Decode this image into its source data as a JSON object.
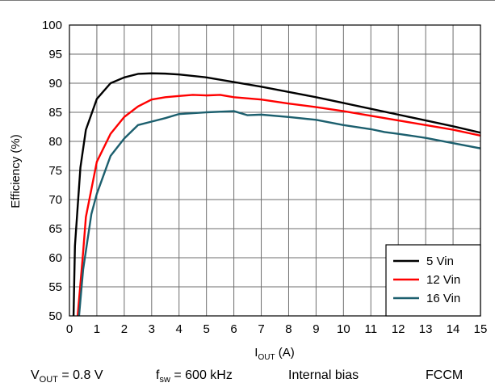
{
  "chart_data": {
    "type": "line",
    "xlabel": {
      "main": "I",
      "sub": "OUT",
      "unit": " (A)"
    },
    "ylabel": "Efficiency (%)",
    "xlim": [
      0,
      15
    ],
    "ylim": [
      50,
      100
    ],
    "x_ticks": [
      "0",
      "1",
      "2",
      "3",
      "4",
      "5",
      "6",
      "7",
      "8",
      "9",
      "10",
      "11",
      "12",
      "13",
      "14",
      "15"
    ],
    "y_ticks": [
      "50",
      "55",
      "60",
      "65",
      "70",
      "75",
      "80",
      "85",
      "90",
      "95",
      "100"
    ],
    "grid": true,
    "legend_position": "bottom-right",
    "series": [
      {
        "name": "5 Vin",
        "color": "#000000",
        "points": [
          [
            0.15,
            50
          ],
          [
            0.2,
            62
          ],
          [
            0.4,
            75.5
          ],
          [
            0.6,
            82
          ],
          [
            1.0,
            87.3
          ],
          [
            1.5,
            90
          ],
          [
            2.0,
            91
          ],
          [
            2.5,
            91.6
          ],
          [
            3.0,
            91.7
          ],
          [
            3.5,
            91.65
          ],
          [
            4.0,
            91.5
          ],
          [
            5.0,
            91
          ],
          [
            6.0,
            90.2
          ],
          [
            7.0,
            89.4
          ],
          [
            8.0,
            88.5
          ],
          [
            9.0,
            87.6
          ],
          [
            10.0,
            86.6
          ],
          [
            11.0,
            85.6
          ],
          [
            12.0,
            84.6
          ],
          [
            13.0,
            83.6
          ],
          [
            14.0,
            82.6
          ],
          [
            15.0,
            81.5
          ]
        ]
      },
      {
        "name": "12 Vin",
        "color": "#ff0000",
        "points": [
          [
            0.3,
            50
          ],
          [
            0.5,
            61
          ],
          [
            0.6,
            67
          ],
          [
            1.0,
            76.5
          ],
          [
            1.5,
            81.3
          ],
          [
            2.0,
            84.2
          ],
          [
            2.5,
            86
          ],
          [
            3.0,
            87.2
          ],
          [
            3.5,
            87.6
          ],
          [
            4.0,
            87.8
          ],
          [
            4.5,
            88
          ],
          [
            5.0,
            87.9
          ],
          [
            5.5,
            88
          ],
          [
            6.0,
            87.6
          ],
          [
            7.0,
            87.2
          ],
          [
            8.0,
            86.5
          ],
          [
            9.0,
            85.9
          ],
          [
            10.0,
            85.2
          ],
          [
            11.0,
            84.4
          ],
          [
            12.0,
            83.6
          ],
          [
            13.0,
            82.8
          ],
          [
            14.0,
            82
          ],
          [
            15.0,
            81
          ]
        ]
      },
      {
        "name": "16 Vin",
        "color": "#1c5f6e",
        "points": [
          [
            0.35,
            50
          ],
          [
            0.5,
            58
          ],
          [
            0.8,
            67.5
          ],
          [
            1.0,
            71
          ],
          [
            1.5,
            77.5
          ],
          [
            2.0,
            80.5
          ],
          [
            2.5,
            82.8
          ],
          [
            3.0,
            83.4
          ],
          [
            3.5,
            84
          ],
          [
            4.0,
            84.7
          ],
          [
            5.0,
            85
          ],
          [
            6.0,
            85.2
          ],
          [
            6.5,
            84.5
          ],
          [
            7.0,
            84.6
          ],
          [
            8.0,
            84.2
          ],
          [
            9.0,
            83.7
          ],
          [
            10.0,
            82.8
          ],
          [
            11.0,
            82.1
          ],
          [
            11.5,
            81.6
          ],
          [
            12.0,
            81.3
          ],
          [
            13.0,
            80.6
          ],
          [
            14.0,
            79.7
          ],
          [
            15.0,
            78.8
          ]
        ]
      }
    ]
  },
  "caption": {
    "vout": {
      "main": "V",
      "sub": "OUT",
      "rest": " = 0.8 V"
    },
    "fsw": {
      "main": "f",
      "sub": "sw",
      "rest": " = 600 kHz"
    },
    "bias": "Internal bias",
    "mode": "FCCM"
  }
}
